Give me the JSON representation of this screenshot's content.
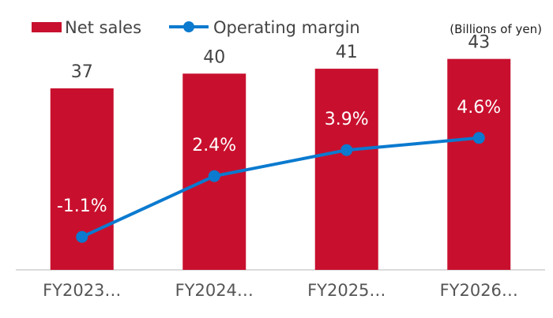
{
  "chart_data": {
    "type": "bar",
    "title": "",
    "unit_note": "(Billions of yen)",
    "categories": [
      "FY2023…",
      "FY2024…",
      "FY2025…",
      "FY2026…"
    ],
    "series": [
      {
        "name": "Net sales",
        "kind": "bar",
        "values": [
          37,
          40,
          41,
          43
        ],
        "labels": [
          "37",
          "40",
          "41",
          "43"
        ],
        "color": "#C8102E"
      },
      {
        "name": "Operating margin",
        "kind": "line",
        "values": [
          -1.1,
          2.4,
          3.9,
          4.6
        ],
        "labels": [
          "-1.1%",
          "2.4%",
          "3.9%",
          "4.6%"
        ],
        "color": "#0B7ACF"
      }
    ],
    "bar_ylim": [
      0,
      46
    ],
    "line_ylim": [
      -3,
      10
    ],
    "grid": false,
    "legend_position": "top-left"
  }
}
